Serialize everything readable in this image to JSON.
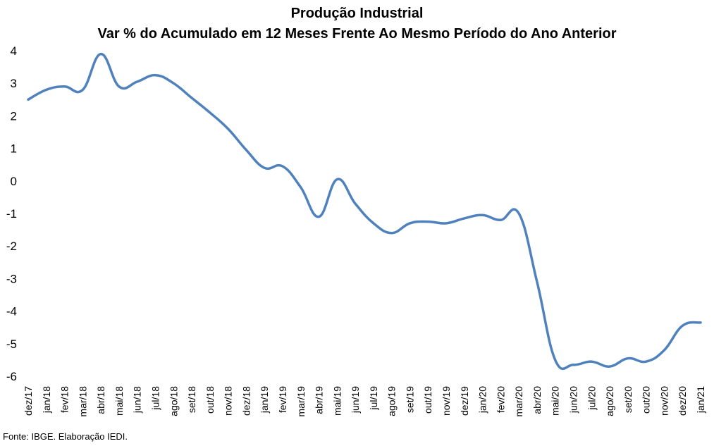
{
  "chart_data": {
    "type": "line",
    "title": "Produção Industrial",
    "subtitle": "Var % do Acumulado em 12 Meses Frente Ao Mesmo Período do Ano Anterior",
    "xlabel": "",
    "ylabel": "",
    "ylim": [
      -6,
      4
    ],
    "yticks": [
      "4",
      "3",
      "2",
      "1",
      "0",
      "-1",
      "-2",
      "-3",
      "-4",
      "-5",
      "-6"
    ],
    "categories": [
      "dez/17",
      "jan/18",
      "fev/18",
      "mar/18",
      "abr/18",
      "mai/18",
      "jun/18",
      "jul/18",
      "ago/18",
      "set/18",
      "out/18",
      "nov/18",
      "dez/18",
      "jan/19",
      "fev/19",
      "mar/19",
      "abr/19",
      "mai/19",
      "jun/19",
      "jul/19",
      "ago/19",
      "set/19",
      "out/19",
      "nov/19",
      "dez/19",
      "jan/20",
      "fev/20",
      "mar/20",
      "abr/20",
      "mai/20",
      "jun/20",
      "jul/20",
      "ago/20",
      "set/20",
      "out/20",
      "nov/20",
      "dez/20",
      "jan/21"
    ],
    "values": [
      2.5,
      2.8,
      2.9,
      2.8,
      3.9,
      2.9,
      3.05,
      3.25,
      3.0,
      2.55,
      2.1,
      1.6,
      0.95,
      0.4,
      0.45,
      -0.2,
      -1.1,
      0.05,
      -0.7,
      -1.3,
      -1.6,
      -1.3,
      -1.25,
      -1.3,
      -1.15,
      -1.05,
      -1.2,
      -1.0,
      -3.1,
      -5.5,
      -5.65,
      -5.55,
      -5.7,
      -5.45,
      -5.55,
      -5.2,
      -4.45,
      -4.35
    ],
    "color": "#4F81BD",
    "grid": false,
    "legend": "none"
  },
  "footer": {
    "source": "Fonte: IBGE. Elaboração IEDI."
  }
}
